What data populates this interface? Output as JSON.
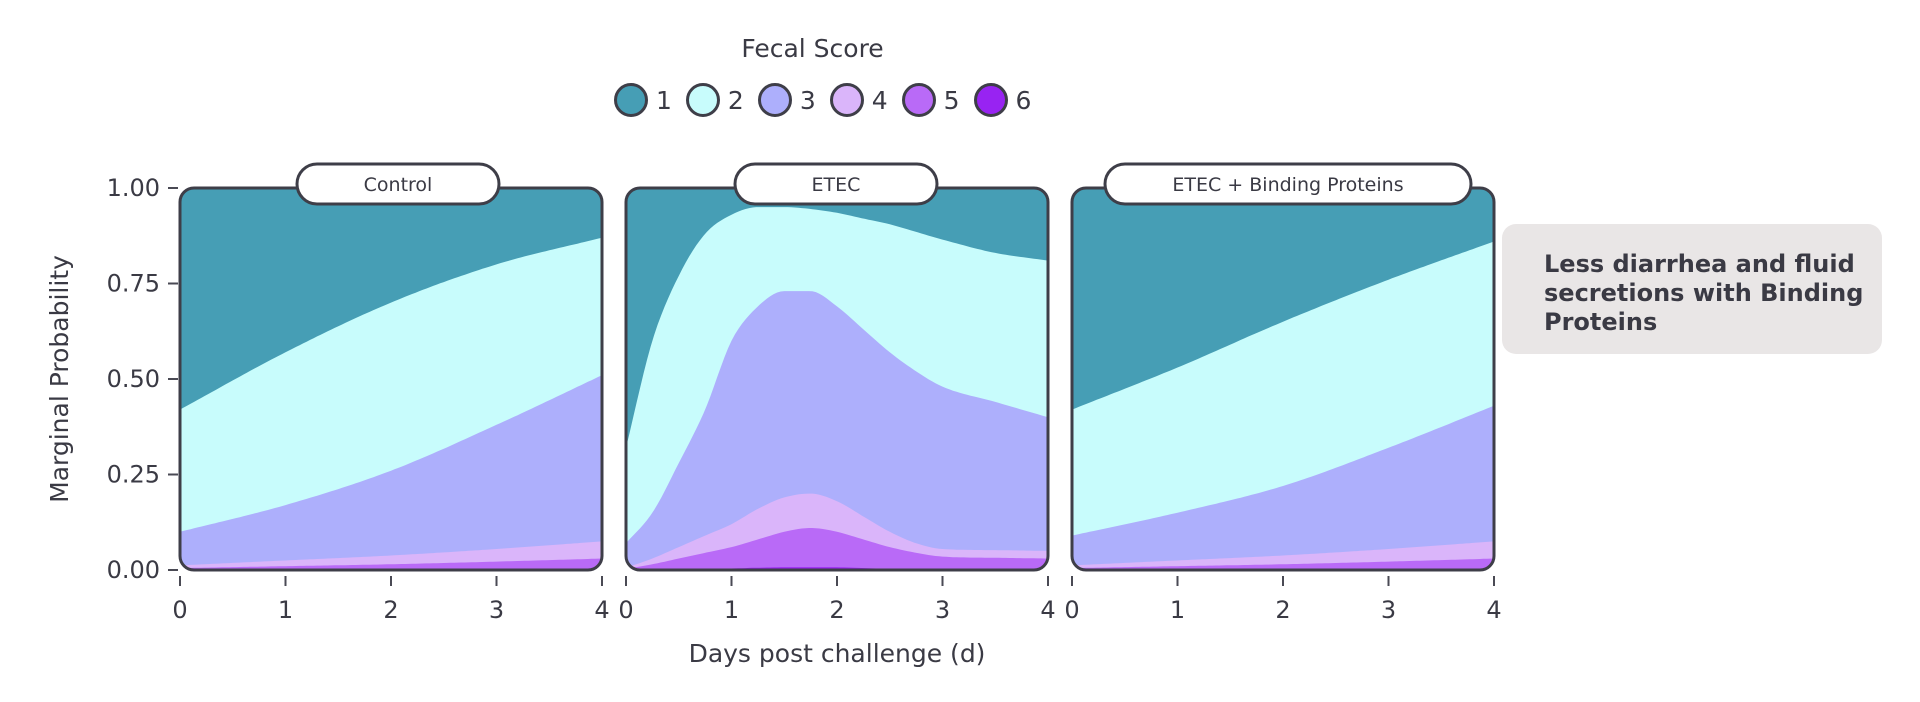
{
  "chart_data": {
    "type": "area",
    "stacked": true,
    "legend": {
      "title": "Fecal Score",
      "placement": "top-center",
      "items": [
        {
          "label": "1",
          "color": "#469eb5"
        },
        {
          "label": "2",
          "color": "#c8fcfc"
        },
        {
          "label": "3",
          "color": "#adaffc"
        },
        {
          "label": "4",
          "color": "#dab5fa"
        },
        {
          "label": "5",
          "color": "#b96af7"
        },
        {
          "label": "6",
          "color": "#9823f2"
        }
      ]
    },
    "ylabel": "Marginal Probability",
    "xlabel": "Days post challenge (d)",
    "ylim": [
      0,
      1
    ],
    "xlim": [
      0,
      4
    ],
    "yticks": [
      "0.00",
      "0.25",
      "0.50",
      "0.75",
      "1.00"
    ],
    "xticks": [
      "0",
      "1",
      "2",
      "3",
      "4"
    ],
    "grid": false,
    "panels": [
      {
        "title": "Control",
        "x": [
          0,
          1,
          2,
          3,
          4
        ],
        "cumulative": [
          {
            "score": "6",
            "values": [
              0.0,
              0.0,
              0.0,
              0.0,
              0.0
            ]
          },
          {
            "score": "5",
            "values": [
              0.005,
              0.01,
              0.015,
              0.022,
              0.03
            ]
          },
          {
            "score": "4",
            "values": [
              0.012,
              0.025,
              0.038,
              0.055,
              0.075
            ]
          },
          {
            "score": "3",
            "values": [
              0.1,
              0.17,
              0.26,
              0.38,
              0.51
            ]
          },
          {
            "score": "2",
            "values": [
              0.42,
              0.57,
              0.7,
              0.8,
              0.87
            ]
          },
          {
            "score": "1",
            "values": [
              1.0,
              1.0,
              1.0,
              1.0,
              1.0
            ]
          }
        ]
      },
      {
        "title": "ETEC",
        "x": [
          0,
          0.25,
          0.5,
          0.75,
          1,
          1.25,
          1.5,
          1.75,
          2,
          2.25,
          2.5,
          2.75,
          3,
          3.5,
          4
        ],
        "cumulative": [
          {
            "score": "6",
            "values": [
              0,
              0.001,
              0.002,
              0.003,
              0.004,
              0.006,
              0.007,
              0.007,
              0.007,
              0.005,
              0.003,
              0.002,
              0.001,
              0.001,
              0.001
            ]
          },
          {
            "score": "5",
            "values": [
              0.003,
              0.015,
              0.03,
              0.045,
              0.06,
              0.08,
              0.1,
              0.11,
              0.1,
              0.08,
              0.06,
              0.045,
              0.035,
              0.032,
              0.03
            ]
          },
          {
            "score": "4",
            "values": [
              0.006,
              0.03,
              0.06,
              0.09,
              0.12,
              0.16,
              0.19,
              0.2,
              0.18,
              0.14,
              0.1,
              0.07,
              0.055,
              0.052,
              0.05
            ]
          },
          {
            "score": "3",
            "values": [
              0.07,
              0.15,
              0.28,
              0.42,
              0.6,
              0.69,
              0.73,
              0.73,
              0.69,
              0.63,
              0.57,
              0.52,
              0.48,
              0.44,
              0.4
            ]
          },
          {
            "score": "2",
            "values": [
              0.32,
              0.6,
              0.77,
              0.88,
              0.93,
              0.95,
              0.95,
              0.945,
              0.935,
              0.92,
              0.905,
              0.885,
              0.865,
              0.83,
              0.81
            ]
          },
          {
            "score": "1",
            "values": [
              1,
              1,
              1,
              1,
              1,
              1,
              1,
              1,
              1,
              1,
              1,
              1,
              1,
              1,
              1
            ]
          }
        ]
      },
      {
        "title": "ETEC + Binding Proteins",
        "x": [
          0,
          1,
          2,
          3,
          4
        ],
        "cumulative": [
          {
            "score": "6",
            "values": [
              0.0,
              0.0,
              0.0,
              0.0,
              0.0
            ]
          },
          {
            "score": "5",
            "values": [
              0.005,
              0.01,
              0.015,
              0.022,
              0.03
            ]
          },
          {
            "score": "4",
            "values": [
              0.012,
              0.025,
              0.038,
              0.055,
              0.075
            ]
          },
          {
            "score": "3",
            "values": [
              0.09,
              0.15,
              0.22,
              0.32,
              0.43
            ]
          },
          {
            "score": "2",
            "values": [
              0.42,
              0.53,
              0.65,
              0.76,
              0.86
            ]
          },
          {
            "score": "1",
            "values": [
              1.0,
              1.0,
              1.0,
              1.0,
              1.0
            ]
          }
        ]
      }
    ]
  },
  "annotation": {
    "text": "Less diarrhea and fluid secretions with Binding Proteins"
  }
}
